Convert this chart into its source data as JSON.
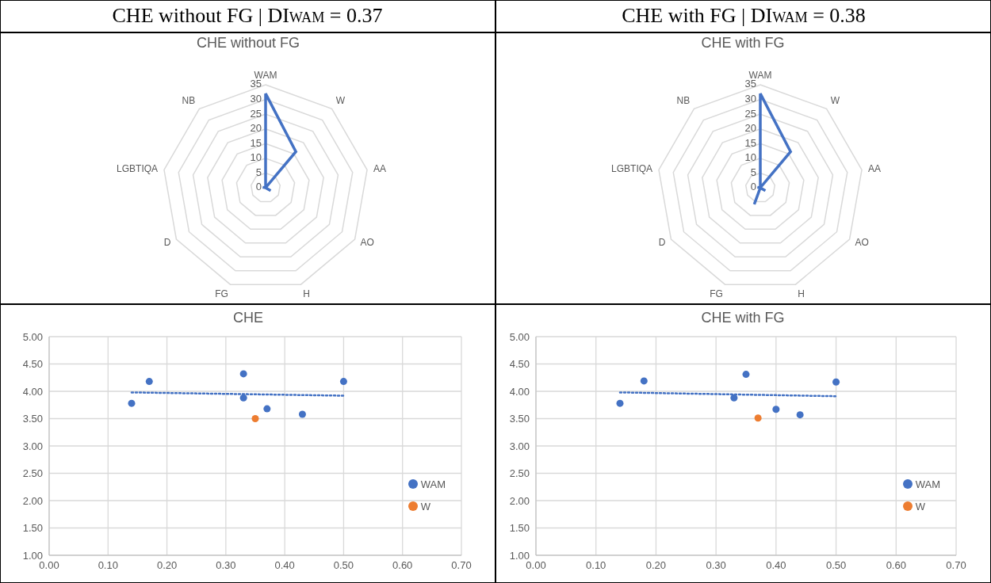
{
  "chart_data": [
    {
      "type": "radar",
      "title": "CHE without FG | DI$_{WAM}$ = 0.37",
      "subtitle": "CHE without FG",
      "categories": [
        "WAM",
        "W",
        "AA",
        "AO",
        "H",
        "FG",
        "D",
        "LGBTIQA",
        "NB"
      ],
      "ylim": [
        0,
        35
      ],
      "yticks": [
        0,
        5,
        10,
        15,
        20,
        25,
        30,
        35
      ],
      "grid": true,
      "series": [
        {
          "color": "#4472c4",
          "values": [
            32,
            16,
            0,
            2,
            0,
            0,
            0,
            1,
            0
          ]
        }
      ]
    },
    {
      "type": "radar",
      "title": "CHE with FG | DI$_{WAM}$ = 0.38",
      "subtitle": "CHE with FG",
      "categories": [
        "WAM",
        "W",
        "AA",
        "AO",
        "H",
        "FG",
        "D",
        "LGBTIQA",
        "NB"
      ],
      "ylim": [
        0,
        35
      ],
      "yticks": [
        0,
        5,
        10,
        15,
        20,
        25,
        30,
        35
      ],
      "grid": true,
      "series": [
        {
          "color": "#4472c4",
          "values": [
            32,
            16,
            0,
            2,
            0,
            6,
            0,
            1,
            0
          ]
        }
      ]
    },
    {
      "type": "scatter",
      "title": "CHE",
      "xlim": [
        0,
        0.7
      ],
      "ylim": [
        1,
        5
      ],
      "xticks": [
        {
          "value": 0,
          "label": "0.00"
        },
        {
          "value": 0.1,
          "label": "0.10"
        },
        {
          "value": 0.2,
          "label": "0.20"
        },
        {
          "value": 0.3,
          "label": "0.30"
        },
        {
          "value": 0.4,
          "label": "0.40"
        },
        {
          "value": 0.5,
          "label": "0.50"
        },
        {
          "value": 0.6,
          "label": "0.60"
        },
        {
          "value": 0.7,
          "label": "0.70"
        }
      ],
      "yticks": [
        {
          "value": 1,
          "label": "1.00"
        },
        {
          "value": 1.5,
          "label": "1.50"
        },
        {
          "value": 2,
          "label": "2.00"
        },
        {
          "value": 2.5,
          "label": "2.50"
        },
        {
          "value": 3,
          "label": "3.00"
        },
        {
          "value": 3.5,
          "label": "3.50"
        },
        {
          "value": 4,
          "label": "4.00"
        },
        {
          "value": 4.5,
          "label": "4.50"
        },
        {
          "value": 5,
          "label": "5.00"
        }
      ],
      "grid": true,
      "legend": "bottom right",
      "series": [
        {
          "name": "WAM",
          "color": "#4472c4",
          "marker": "circle",
          "x": [
            0.14,
            0.17,
            0.33,
            0.33,
            0.37,
            0.43,
            0.5
          ],
          "values": [
            3.78,
            4.18,
            4.32,
            3.88,
            3.68,
            3.58,
            4.18
          ]
        },
        {
          "name": "W",
          "color": "#ed7d31",
          "marker": "circle",
          "x": [
            0.35
          ],
          "values": [
            3.5
          ]
        },
        {
          "type": "line",
          "color": "#4472c4",
          "line_style": "dotted",
          "x": [
            0.14,
            0.5
          ],
          "values": [
            3.98,
            3.92
          ]
        }
      ]
    },
    {
      "type": "scatter",
      "title": "CHE with FG",
      "xlim": [
        0,
        0.7
      ],
      "ylim": [
        1,
        5
      ],
      "xticks": [
        {
          "value": 0,
          "label": "0.00"
        },
        {
          "value": 0.1,
          "label": "0.10"
        },
        {
          "value": 0.2,
          "label": "0.20"
        },
        {
          "value": 0.3,
          "label": "0.30"
        },
        {
          "value": 0.4,
          "label": "0.40"
        },
        {
          "value": 0.5,
          "label": "0.50"
        },
        {
          "value": 0.6,
          "label": "0.60"
        },
        {
          "value": 0.7,
          "label": "0.70"
        }
      ],
      "yticks": [
        {
          "value": 1,
          "label": "1.00"
        },
        {
          "value": 1.5,
          "label": "1.50"
        },
        {
          "value": 2,
          "label": "2.00"
        },
        {
          "value": 2.5,
          "label": "2.50"
        },
        {
          "value": 3,
          "label": "3.00"
        },
        {
          "value": 3.5,
          "label": "3.50"
        },
        {
          "value": 4,
          "label": "4.00"
        },
        {
          "value": 4.5,
          "label": "4.50"
        },
        {
          "value": 5,
          "label": "5.00"
        }
      ],
      "grid": true,
      "legend": "bottom right",
      "series": [
        {
          "name": "WAM",
          "color": "#4472c4",
          "marker": "circle",
          "x": [
            0.14,
            0.18,
            0.35,
            0.33,
            0.4,
            0.44,
            0.5
          ],
          "values": [
            3.78,
            4.19,
            4.31,
            3.88,
            3.67,
            3.57,
            4.17
          ]
        },
        {
          "name": "W",
          "color": "#ed7d31",
          "marker": "circle",
          "x": [
            0.37
          ],
          "values": [
            3.51
          ]
        },
        {
          "type": "line",
          "color": "#4472c4",
          "line_style": "dotted",
          "x": [
            0.14,
            0.5
          ],
          "values": [
            3.98,
            3.91
          ]
        }
      ]
    }
  ]
}
